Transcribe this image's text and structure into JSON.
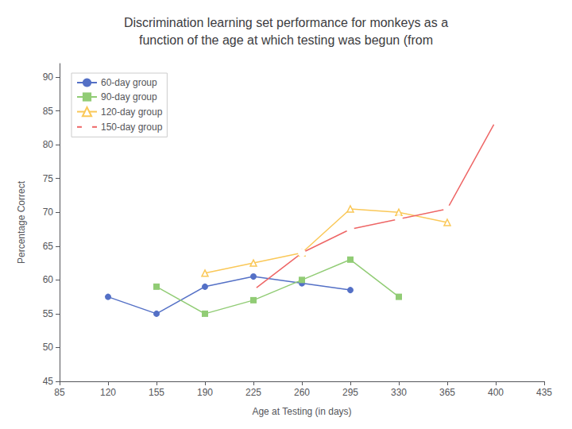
{
  "chart_data": {
    "type": "line",
    "title": "Discrimination learning set performance for monkeys as a\nfunction of the age at which testing was begun (from",
    "x_label": "Age at Testing (in days)",
    "y_label": "Percentage Correct",
    "xlim": [
      85,
      435
    ],
    "ylim": [
      45,
      92
    ],
    "xticks": [
      85,
      120,
      155,
      190,
      225,
      260,
      295,
      330,
      365,
      400,
      435
    ],
    "yticks": [
      45,
      50,
      55,
      60,
      65,
      70,
      75,
      80,
      85,
      90
    ],
    "grid": false,
    "legend": "upper left",
    "series": [
      {
        "name": "60-day group",
        "marker": "circle",
        "x": [
          120,
          155,
          190,
          225,
          260,
          295
        ],
        "values": [
          57.5,
          55.0,
          59.0,
          60.5,
          59.5,
          58.5
        ]
      },
      {
        "name": "90-day group",
        "marker": "square",
        "x": [
          155,
          190,
          225,
          260,
          295,
          330
        ],
        "values": [
          59.0,
          55.0,
          57.0,
          60.0,
          63.0,
          57.5
        ]
      },
      {
        "name": "120-day group",
        "marker": "open-triangle",
        "x": [
          190,
          225,
          260,
          295,
          330,
          365
        ],
        "values": [
          61.0,
          62.5,
          64.0,
          70.5,
          70.0,
          68.5
        ]
      },
      {
        "name": "150-day group",
        "marker": "open-circle",
        "x": [
          225,
          260,
          295,
          330,
          365,
          400
        ],
        "values": [
          58.5,
          64.0,
          67.5,
          69.0,
          70.5,
          83.5
        ]
      }
    ]
  }
}
